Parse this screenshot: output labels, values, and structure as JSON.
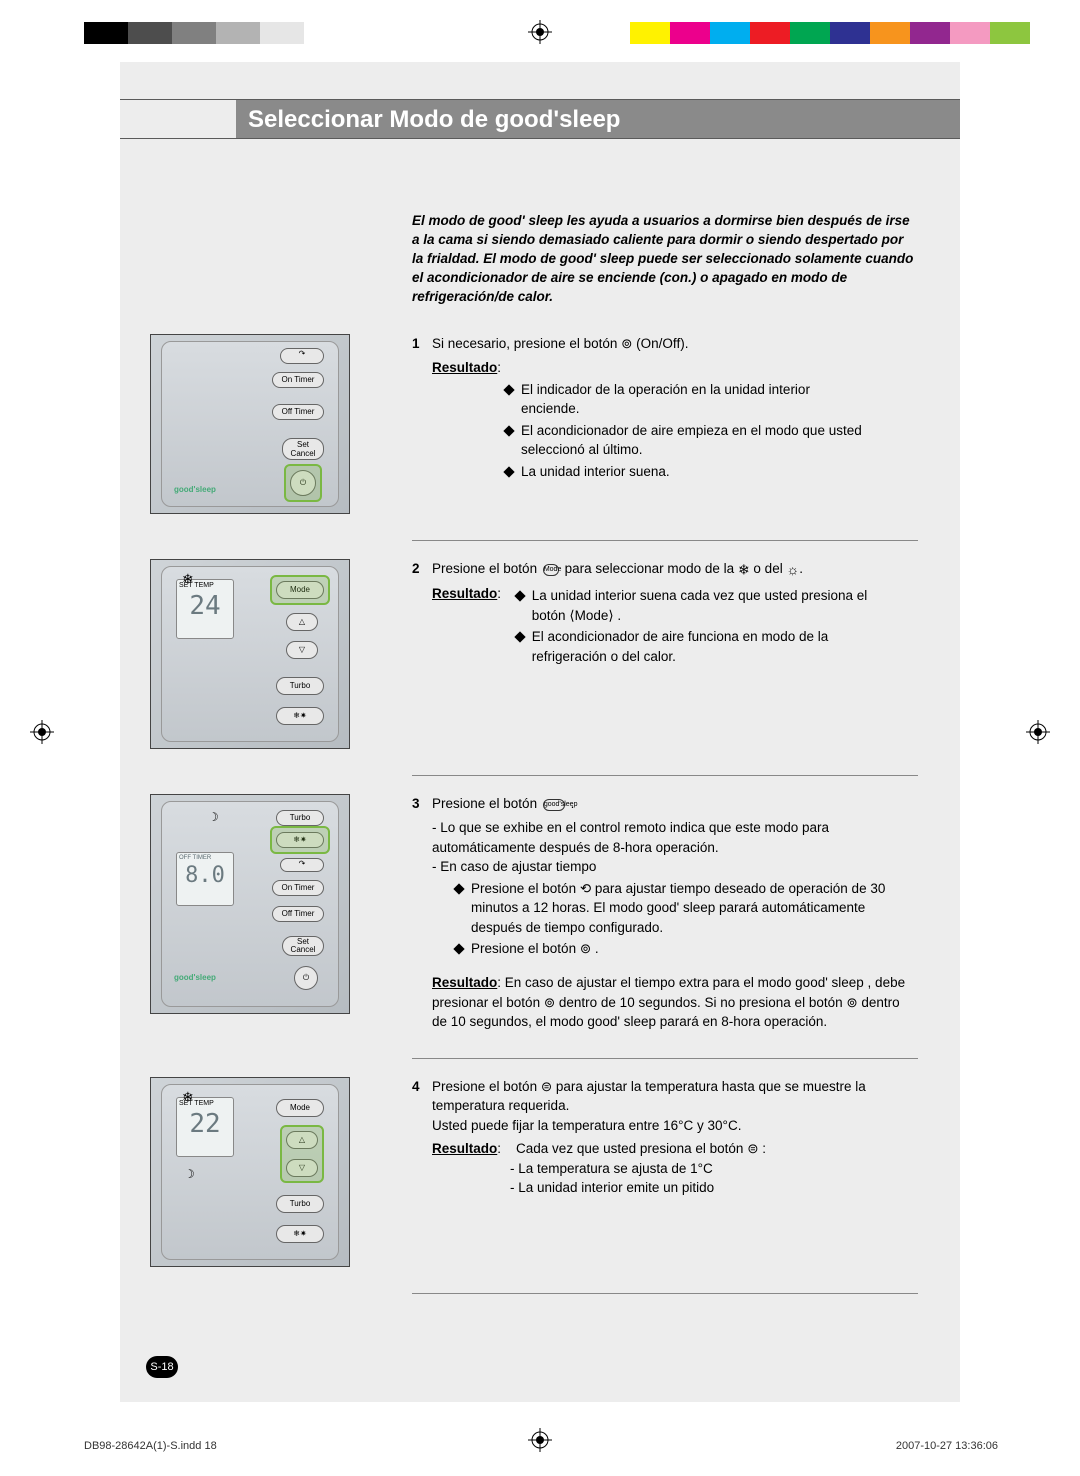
{
  "registration_bars": {
    "left_colors": [
      "#000000",
      "#4d4d4d",
      "#808080",
      "#b3b3b3",
      "#e6e6e6",
      "#ffffff"
    ],
    "right_colors": [
      "#fff200",
      "#ec008c",
      "#00aeef",
      "#ed1c24",
      "#00a651",
      "#2e3192",
      "#f7941d",
      "#92278f",
      "#f49ac1",
      "#8dc63f"
    ]
  },
  "title": "Seleccionar Modo de good'sleep",
  "intro": "El modo de good' sleep les ayuda a usuarios a dormirse bien después de irse a la cama si siendo demasiado caliente para dormir o siendo despertado por la frialdad. El modo de good' sleep puede ser seleccionado solamente cuando el acondicionador de aire se enciende (con.) o apagado en modo de refrigeración/de calor.",
  "steps": [
    {
      "n": "1",
      "lead": "Si necesario, presione el botón ⊚ (On/Off).",
      "result_label": "Resultado",
      "bullets": [
        "El indicador de la operación en la unidad interior enciende.",
        "El acondicionador de aire empieza en el modo que usted seleccionó al último.",
        "La unidad interior suena."
      ],
      "remote": {
        "goodsleep_label": "good'sleep",
        "btn_ontimer": "On Timer",
        "btn_offtimer": "Off Timer",
        "btn_setcancel": "Set\nCancel",
        "highlight": "power"
      }
    },
    {
      "n": "2",
      "lead_pre": "Presione el botón ",
      "lead_mid": " para seleccionar modo de la ",
      "lead_post": ".",
      "result_label": "Resultado",
      "bullets": [
        "La unidad interior suena cada vez que usted presiona el botón ⟨Mode⟩ .",
        "El acondicionador de aire funciona en modo de la refrigeración o del calor."
      ],
      "remote": {
        "lcd_top": "SET TEMP",
        "lcd_temp": "24",
        "btn_mode": "Mode",
        "btn_turbo": "Turbo",
        "highlight": "mode"
      }
    },
    {
      "n": "3",
      "lead_pre": "Presione el botón ",
      "lead_post": " .",
      "dash_items": [
        "Lo que se exhibe en el control remoto indica que este modo para automáticamente después de 8-hora operación.",
        "En caso de ajustar tiempo"
      ],
      "sub_bullets": [
        "Presione el botón ⟲ para ajustar tiempo deseado de operación de 30 minutos a 12 horas. El modo good' sleep parará automáticamente después de tiempo configurado.",
        "Presione el botón ⊚ ."
      ],
      "result_label": "Resultado",
      "result_text": ": En caso de ajustar el tiempo extra para el modo good' sleep , debe presionar el botón ⊚ dentro de 10 segundos. Si no presiona el botón ⊚ dentro de 10 segundos, el modo good' sleep parará en 8-hora operación.",
      "remote": {
        "lcd_label": "OFF TIMER",
        "lcd_time": "8.0",
        "btn_turbo": "Turbo",
        "btn_ontimer": "On Timer",
        "btn_offtimer": "Off Timer",
        "btn_setcancel": "Set\nCancel",
        "goodsleep_label": "good'sleep",
        "highlight": "goodsleep"
      }
    },
    {
      "n": "4",
      "lead": "Presione el botón ⊜ para ajustar la temperatura hasta que se muestre la temperatura requerida.",
      "lead2": "Usted puede fijar la temperatura entre 16°C y 30°C.",
      "result_label": "Resultado",
      "result_intro": "Cada vez que usted presiona el botón ⊜ :",
      "dash_items": [
        "- La temperatura se ajusta de 1°C",
        "- La unidad interior emite un pitido"
      ],
      "remote": {
        "lcd_top": "SET TEMP",
        "lcd_temp": "22",
        "btn_mode": "Mode",
        "btn_turbo": "Turbo",
        "highlight": "temp"
      }
    }
  ],
  "page_number": "S-18",
  "footer": {
    "left": "DB98-28642A(1)-S.indd   18",
    "right": "2007-10-27   13:36:06"
  }
}
